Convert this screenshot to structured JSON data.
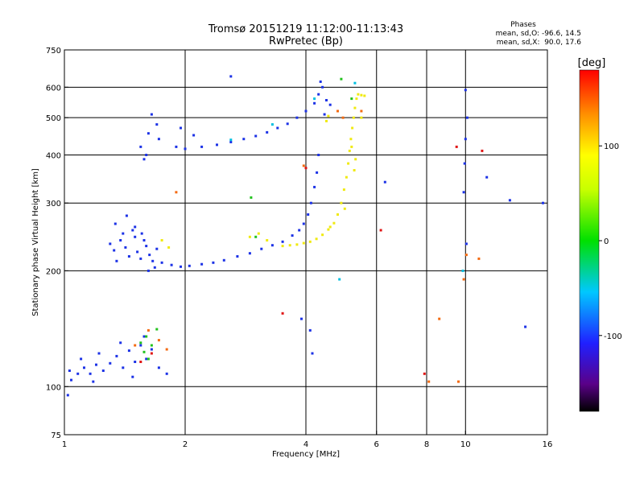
{
  "chart_data": {
    "type": "scatter",
    "title": "Tromsø 20151219 11:12:00-11:13:43",
    "subtitle": "RwPretec (Bp)",
    "xlabel": "Frequency [MHz]",
    "ylabel": "Stationary phase Virtual Height [km]",
    "x_scale": "log",
    "y_scale": "log",
    "xlim": [
      1,
      16
    ],
    "ylim": [
      75,
      750
    ],
    "x_ticks": [
      1,
      2,
      4,
      6,
      8,
      10,
      16
    ],
    "x_tick_labels": [
      "1",
      "2",
      "4",
      "6",
      "8",
      "10",
      "16"
    ],
    "y_ticks": [
      75,
      100,
      200,
      300,
      400,
      500,
      600,
      750
    ],
    "y_tick_labels": [
      "75",
      "100",
      "200",
      "300",
      "400",
      "500",
      "600",
      "750"
    ],
    "grid": true,
    "stats": {
      "heading": "Phases",
      "line_o": "mean, sd,O: -96.6, 14.5",
      "line_x": "mean, sd,X:  90.0, 17.6"
    },
    "colorbar": {
      "unit_label": "[deg]",
      "range": [
        -180,
        180
      ],
      "ticks": [
        100,
        0,
        -100
      ],
      "tick_labels": [
        "100",
        "0",
        "-100"
      ]
    },
    "colors": {
      "o_mode": "#1c32e6",
      "x_mode": "#f0ea10"
    },
    "series": [
      {
        "mode": "O",
        "phase_deg": -100,
        "color": "#1c32e6",
        "points": [
          [
            1.02,
            95
          ],
          [
            1.04,
            104
          ],
          [
            1.08,
            108
          ],
          [
            1.12,
            112
          ],
          [
            1.16,
            108
          ],
          [
            1.2,
            114
          ],
          [
            1.25,
            110
          ],
          [
            1.3,
            115
          ],
          [
            1.35,
            120
          ],
          [
            1.4,
            112
          ],
          [
            1.45,
            124
          ],
          [
            1.5,
            116
          ],
          [
            1.55,
            128
          ],
          [
            1.6,
            118
          ],
          [
            1.65,
            125
          ],
          [
            1.72,
            112
          ],
          [
            1.8,
            108
          ],
          [
            1.1,
            118
          ],
          [
            1.22,
            122
          ],
          [
            1.38,
            130
          ],
          [
            1.58,
            135
          ],
          [
            1.03,
            110
          ],
          [
            1.18,
            103
          ],
          [
            1.48,
            106
          ],
          [
            1.3,
            235
          ],
          [
            1.33,
            226
          ],
          [
            1.35,
            212
          ],
          [
            1.38,
            240
          ],
          [
            1.4,
            250
          ],
          [
            1.42,
            230
          ],
          [
            1.45,
            218
          ],
          [
            1.48,
            255
          ],
          [
            1.5,
            245
          ],
          [
            1.52,
            224
          ],
          [
            1.55,
            215
          ],
          [
            1.58,
            240
          ],
          [
            1.6,
            232
          ],
          [
            1.63,
            220
          ],
          [
            1.66,
            212
          ],
          [
            1.7,
            228
          ],
          [
            1.34,
            265
          ],
          [
            1.43,
            278
          ],
          [
            1.5,
            260
          ],
          [
            1.56,
            250
          ],
          [
            1.62,
            200
          ],
          [
            1.68,
            204
          ],
          [
            1.75,
            210
          ],
          [
            1.85,
            207
          ],
          [
            1.95,
            205
          ],
          [
            2.05,
            206
          ],
          [
            2.2,
            208
          ],
          [
            2.35,
            210
          ],
          [
            2.5,
            213
          ],
          [
            2.7,
            218
          ],
          [
            2.9,
            222
          ],
          [
            3.1,
            228
          ],
          [
            3.3,
            233
          ],
          [
            3.5,
            238
          ],
          [
            3.7,
            247
          ],
          [
            3.85,
            255
          ],
          [
            3.95,
            265
          ],
          [
            4.05,
            280
          ],
          [
            4.12,
            300
          ],
          [
            4.2,
            330
          ],
          [
            4.26,
            360
          ],
          [
            4.3,
            400
          ],
          [
            1.55,
            420
          ],
          [
            1.6,
            400
          ],
          [
            1.62,
            455
          ],
          [
            1.65,
            510
          ],
          [
            1.7,
            480
          ],
          [
            1.58,
            390
          ],
          [
            1.72,
            440
          ],
          [
            1.9,
            420
          ],
          [
            2.0,
            415
          ],
          [
            2.2,
            420
          ],
          [
            2.4,
            425
          ],
          [
            2.6,
            432
          ],
          [
            2.8,
            440
          ],
          [
            3.0,
            448
          ],
          [
            3.2,
            458
          ],
          [
            3.4,
            470
          ],
          [
            3.6,
            482
          ],
          [
            3.8,
            500
          ],
          [
            4.0,
            520
          ],
          [
            4.2,
            545
          ],
          [
            4.3,
            575
          ],
          [
            4.4,
            600
          ],
          [
            4.35,
            620
          ],
          [
            1.95,
            470
          ],
          [
            2.1,
            450
          ],
          [
            4.5,
            555
          ],
          [
            4.6,
            540
          ],
          [
            4.45,
            510
          ],
          [
            2.6,
            640
          ],
          [
            10.0,
            590
          ],
          [
            9.95,
            380
          ],
          [
            9.9,
            320
          ],
          [
            10.05,
            235
          ],
          [
            4.1,
            140
          ],
          [
            4.15,
            122
          ],
          [
            3.9,
            150
          ],
          [
            14.1,
            143
          ],
          [
            15.6,
            300
          ],
          [
            12.9,
            305
          ],
          [
            11.3,
            350
          ],
          [
            10.0,
            440
          ],
          [
            10.1,
            500
          ],
          [
            6.3,
            340
          ]
        ]
      },
      {
        "mode": "X",
        "phase_deg": 90,
        "color": "#f0ea10",
        "points": [
          [
            3.5,
            232
          ],
          [
            3.65,
            233
          ],
          [
            3.8,
            234
          ],
          [
            3.95,
            236
          ],
          [
            4.1,
            238
          ],
          [
            4.25,
            242
          ],
          [
            4.4,
            248
          ],
          [
            4.55,
            256
          ],
          [
            4.7,
            266
          ],
          [
            4.8,
            280
          ],
          [
            4.9,
            300
          ],
          [
            4.98,
            325
          ],
          [
            5.05,
            350
          ],
          [
            5.1,
            380
          ],
          [
            5.14,
            410
          ],
          [
            5.18,
            440
          ],
          [
            5.22,
            470
          ],
          [
            5.26,
            500
          ],
          [
            5.3,
            530
          ],
          [
            5.35,
            560
          ],
          [
            5.4,
            575
          ],
          [
            5.5,
            572
          ],
          [
            5.6,
            570
          ],
          [
            5.2,
            420
          ],
          [
            5.28,
            365
          ],
          [
            5.32,
            390
          ],
          [
            5.0,
            290
          ],
          [
            4.6,
            260
          ],
          [
            2.9,
            245
          ],
          [
            3.05,
            250
          ],
          [
            3.2,
            240
          ],
          [
            1.75,
            240
          ],
          [
            1.82,
            230
          ],
          [
            5.5,
            500
          ],
          [
            4.5,
            490
          ],
          [
            4.55,
            505
          ]
        ]
      },
      {
        "mode": "scatter",
        "color": "#21c21d",
        "points": [
          [
            1.55,
            130
          ],
          [
            1.6,
            135
          ],
          [
            1.65,
            128
          ],
          [
            1.7,
            141
          ],
          [
            1.62,
            118
          ],
          [
            1.58,
            123
          ],
          [
            2.92,
            310
          ],
          [
            3.0,
            245
          ],
          [
            4.9,
            630
          ],
          [
            5.2,
            560
          ]
        ]
      },
      {
        "mode": "scatter",
        "color": "#f46a10",
        "points": [
          [
            1.5,
            128
          ],
          [
            1.62,
            140
          ],
          [
            1.72,
            132
          ],
          [
            1.8,
            125
          ],
          [
            1.9,
            320
          ],
          [
            3.95,
            375
          ],
          [
            4.8,
            520
          ],
          [
            4.95,
            500
          ],
          [
            5.5,
            520
          ],
          [
            8.6,
            150
          ],
          [
            9.6,
            103
          ],
          [
            9.9,
            190
          ],
          [
            10.05,
            220
          ],
          [
            10.8,
            215
          ],
          [
            8.1,
            103
          ]
        ]
      },
      {
        "mode": "scatter",
        "color": "#e01414",
        "points": [
          [
            1.55,
            116
          ],
          [
            1.65,
            122
          ],
          [
            3.5,
            155
          ],
          [
            4.0,
            370
          ],
          [
            6.15,
            255
          ],
          [
            7.9,
            108
          ],
          [
            9.5,
            420
          ],
          [
            11.0,
            410
          ]
        ]
      },
      {
        "mode": "scatter",
        "color": "#00bfe0",
        "points": [
          [
            4.2,
            560
          ],
          [
            5.3,
            615
          ],
          [
            3.3,
            480
          ],
          [
            2.6,
            438
          ],
          [
            4.85,
            190
          ],
          [
            9.85,
            200
          ]
        ]
      }
    ]
  }
}
